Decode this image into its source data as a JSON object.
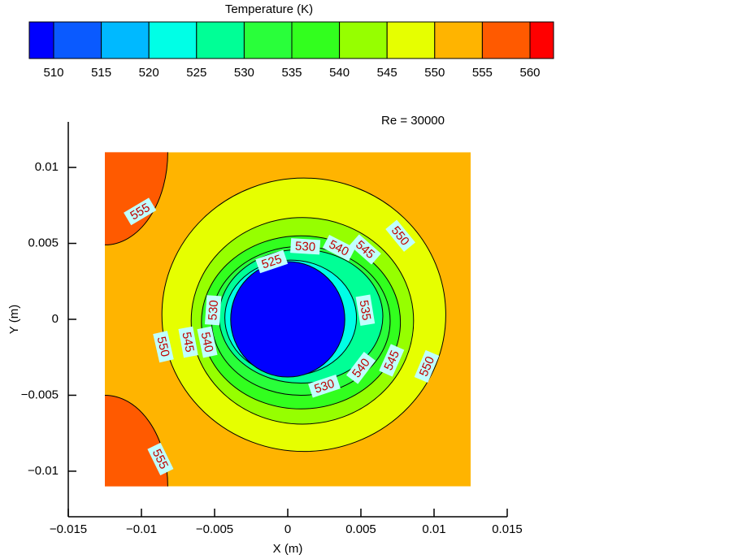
{
  "chart_data": {
    "type": "contour",
    "colorbar": {
      "title": "Temperature (K)",
      "levels": [
        510,
        515,
        520,
        525,
        530,
        535,
        540,
        545,
        550,
        555,
        560
      ],
      "colors": [
        "#0000ff",
        "#0a5aff",
        "#00b9ff",
        "#00ffe6",
        "#00ff96",
        "#29ff3a",
        "#32ff1e",
        "#96ff00",
        "#e6ff00",
        "#ffb400",
        "#ff5a00",
        "#ff0000"
      ]
    },
    "annotation": "Re = 30000",
    "x_label": "X (m)",
    "y_label": "Y (m)",
    "xlim": [
      -0.015,
      0.015
    ],
    "ylim": [
      -0.013,
      0.013
    ],
    "xticks": [
      {
        "value": -0.015,
        "label": "−0.015"
      },
      {
        "value": -0.01,
        "label": "−0.01"
      },
      {
        "value": -0.005,
        "label": "−0.005"
      },
      0,
      0.005,
      0.01,
      0.015
    ],
    "yticks": [
      {
        "value": -0.01,
        "label": "−0.01"
      },
      {
        "value": -0.005,
        "label": "−0.005"
      },
      0,
      0.005,
      0.01
    ],
    "regions": [
      {
        "shape": "rect",
        "level": 555,
        "side": "below",
        "x": [
          -0.0125,
          0.0125
        ],
        "y": [
          -0.011,
          0.011
        ]
      },
      {
        "shape": "ellipse",
        "level": 555,
        "side": "above",
        "cx": -0.0125,
        "cy": 0.011,
        "rx": 0.0043,
        "ry": 0.0061
      },
      {
        "shape": "ellipse",
        "level": 555,
        "side": "above",
        "cx": -0.0125,
        "cy": -0.011,
        "rx": 0.0043,
        "ry": 0.006
      },
      {
        "shape": "ellipse",
        "level": 550,
        "side": "below",
        "cx": 0.0011,
        "cy": 0.0003,
        "rx": 0.0097,
        "ry": 0.009
      },
      {
        "shape": "ellipse",
        "level": 545,
        "side": "below",
        "cx": 0.001,
        "cy": -0.0001,
        "rx": 0.0076,
        "ry": 0.0068
      },
      {
        "shape": "ellipse",
        "level": 540,
        "side": "below",
        "cx": 0.0009,
        "cy": -0.0002,
        "rx": 0.0068,
        "ry": 0.0057
      },
      {
        "shape": "ellipse",
        "level": 535,
        "side": "below",
        "cx": 0.0009,
        "cy": -0.0001,
        "rx": 0.0061,
        "ry": 0.0049
      },
      {
        "shape": "ellipse",
        "level": 530,
        "side": "below",
        "cx": 0.0009,
        "cy": 0.0002,
        "rx": 0.0056,
        "ry": 0.0044
      },
      {
        "shape": "ellipse",
        "level": 525,
        "side": "below",
        "cx": 0.0002,
        "cy": 0.0001,
        "rx": 0.0045,
        "ry": 0.0038
      },
      {
        "shape": "ellipse",
        "level": 510,
        "side": "below",
        "cx": 0,
        "cy": 0,
        "rx": 0.0039,
        "ry": 0.0038
      }
    ],
    "contour_labels": [
      {
        "level": 555,
        "x": -0.0101,
        "y": 0.0071
      },
      {
        "level": 550,
        "x": 0.0077,
        "y": 0.0055
      },
      {
        "level": 530,
        "x": 0.0012,
        "y": 0.0048
      },
      {
        "level": 540,
        "x": 0.0035,
        "y": 0.0047
      },
      {
        "level": 545,
        "x": 0.0053,
        "y": 0.0046
      },
      {
        "level": 525,
        "x": -0.0011,
        "y": 0.0038
      },
      {
        "level": 530,
        "x": -0.0051,
        "y": 0.0006
      },
      {
        "level": 535,
        "x": 0.0053,
        "y": 0.0006
      },
      {
        "level": 550,
        "x": -0.0085,
        "y": -0.0018
      },
      {
        "level": 545,
        "x": -0.0068,
        "y": -0.0015
      },
      {
        "level": 540,
        "x": -0.0055,
        "y": -0.0015
      },
      {
        "level": 540,
        "x": 0.005,
        "y": -0.0032
      },
      {
        "level": 545,
        "x": 0.0071,
        "y": -0.0027
      },
      {
        "level": 550,
        "x": 0.0095,
        "y": -0.0031
      },
      {
        "level": 530,
        "x": 0.0025,
        "y": -0.0044
      },
      {
        "level": 555,
        "x": -0.0087,
        "y": -0.0092
      }
    ]
  }
}
